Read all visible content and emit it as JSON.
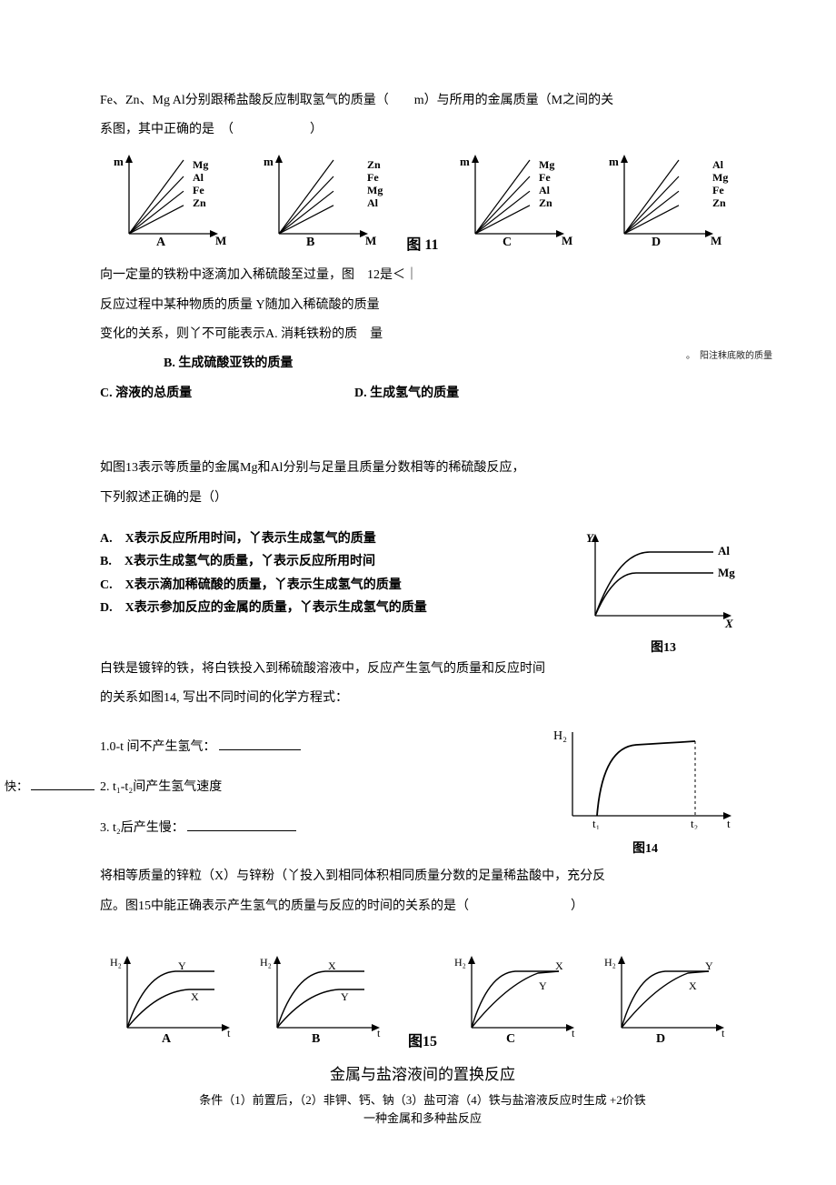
{
  "q11": {
    "text1": "Fe、Zn、Mg Al分别跟稀盐酸反应制取氢气的质量（　　m）与所用的金属质量（M之间的关",
    "text2": "系图，其中正确的是　（　　　　　　）",
    "figlabel": "图 11",
    "charts": [
      {
        "letter": "A",
        "lines": [
          "Mg",
          "Al",
          "Fe",
          "Zn"
        ]
      },
      {
        "letter": "B",
        "lines": [
          "Zn",
          "Fe",
          "Mg",
          "Al"
        ]
      },
      {
        "letter": "C",
        "lines": [
          "Mg",
          "Fe",
          "Al",
          "Zn"
        ]
      },
      {
        "letter": "D",
        "lines": [
          "Al",
          "Mg",
          "Fe",
          "Zn"
        ]
      }
    ],
    "xaxis": "M",
    "yaxis": "m",
    "axis_color": "#000000",
    "line_color": "#000000",
    "label_fontsize": 11
  },
  "q12": {
    "l1": "向一定量的铁粉中逐滴加入稀硫酸至过量，图　12是＜｜",
    "l2": "反应过程中某种物质的质量 Y随加入稀硫酸的质量",
    "l3": "变化的关系，则丫不可能表示A. 消耗铁粉的质　量",
    "optB_indent": "　　　　　B. 生成硫酸亚铁的质量",
    "optC": "C. 溶液的总质量",
    "optD": "D. 生成氢气的质量",
    "side_note": "。　阳注秣底敞的质量"
  },
  "q13": {
    "intro1": "如图13表示等质量的金属Mg和Al分别与足量且质量分数相等的稀硫酸反应，",
    "intro2": "下列叙述正确的是（）",
    "optA": "A.　X表示反应所用时间，丫表示生成氢气的质量",
    "optB": "B.　X表示生成氢气的质量，丫表示反应所用时间",
    "optC": "C.　X表示滴加稀硫酸的质量，丫表示生成氢气的质量",
    "optD": "D.　X表示参加反应的金属的质量，丫表示生成氢气的质量",
    "chart": {
      "top_label": "Al",
      "bottom_label": "Mg",
      "xaxis": "X",
      "yaxis": "Y",
      "figlabel": "图13"
    }
  },
  "q14": {
    "intro1": "白铁是镀锌的铁，将白铁投入到稀硫酸溶液中，反应产生氢气的质量和反应时间",
    "intro2": "的关系如图14, 写出不同时间的化学方程式：",
    "item1": "1.0-t 间不产生氢气：",
    "item2": "2. t₁-t₂间产生氢气速度",
    "left_note": "快：",
    "item3": "3. t₂后产生慢：",
    "figlabel": "图14",
    "yaxis": "H₂",
    "t1": "t₁",
    "t2": "t₂",
    "xaxis": "t"
  },
  "q15": {
    "intro1": "将相等质量的锌粒（X）与锌粉（丫投入到相同体积相同质量分数的足量稀盐酸中，充分反",
    "intro2": "应。图15中能正确表示产生氢气的质量与反应的时间的关系的是（　　　　　　　　）",
    "figlabel": "图15",
    "yaxis": "H₂",
    "xaxis": "t",
    "charts": [
      {
        "letter": "A",
        "top": "Y",
        "bottom": "X",
        "converge": false
      },
      {
        "letter": "B",
        "top": "X",
        "bottom": "Y",
        "converge": false
      },
      {
        "letter": "C",
        "top": "X",
        "bottom": "Y",
        "converge": true
      },
      {
        "letter": "D",
        "top": "Y",
        "bottom": "X",
        "converge": true
      }
    ]
  },
  "footer": {
    "title": "金属与盐溶液间的置换反应",
    "line1": "条件（1）前置后，（2）非钾、钙、钠（3）盐可溶（4）铁与盐溶液反应时生成 +2价铁",
    "line2": "一种金属和多种盐反应"
  }
}
